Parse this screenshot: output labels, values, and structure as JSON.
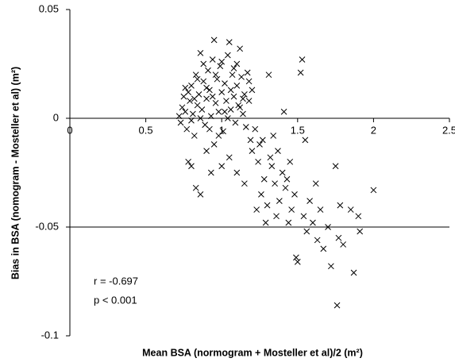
{
  "chart_data": {
    "type": "scatter",
    "xlabel": "Mean BSA (normogram + Mosteller et al)/2 (m²)",
    "ylabel": "Bias in BSA (nomogram - Mosteller et al) (m²)",
    "annotations": [
      "r = -0.697",
      "p < 0.001"
    ],
    "color": "#000000",
    "xlim": [
      0,
      2.5
    ],
    "xticks": [
      0,
      0.5,
      1,
      1.5,
      2,
      2.5
    ],
    "ylim": [
      -0.1,
      0.05
    ],
    "yticks": [
      0.05,
      0,
      -0.05,
      -0.1
    ],
    "grid": true,
    "x": [
      0.72,
      0.73,
      0.74,
      0.75,
      0.76,
      0.77,
      0.78,
      0.79,
      0.8,
      0.81,
      0.82,
      0.83,
      0.84,
      0.85,
      0.86,
      0.87,
      0.88,
      0.89,
      0.9,
      0.91,
      0.92,
      0.93,
      0.94,
      0.95,
      0.96,
      0.97,
      0.98,
      0.99,
      1.0,
      1.01,
      1.02,
      1.03,
      1.04,
      1.05,
      1.06,
      1.07,
      1.08,
      1.09,
      1.1,
      1.11,
      1.12,
      1.13,
      1.14,
      1.15,
      1.16,
      1.17,
      1.18,
      1.19,
      1.2,
      0.76,
      0.8,
      0.84,
      0.88,
      0.92,
      0.96,
      1.0,
      1.04,
      1.08,
      1.12,
      0.82,
      0.86,
      0.9,
      0.94,
      0.98,
      1.02,
      1.06,
      1.1,
      1.14,
      1.18,
      0.78,
      0.8,
      0.83,
      0.86,
      0.9,
      0.95,
      1.0,
      1.05,
      1.1,
      1.15,
      1.2,
      0.93,
      1.22,
      1.24,
      1.25,
      1.26,
      1.28,
      1.3,
      1.32,
      1.33,
      1.35,
      1.36,
      1.38,
      1.4,
      1.41,
      1.42,
      1.44,
      1.45,
      1.46,
      1.48,
      1.49,
      1.5,
      1.52,
      1.53,
      1.54,
      1.55,
      1.56,
      1.58,
      1.6,
      1.62,
      1.63,
      1.65,
      1.67,
      1.7,
      1.72,
      1.75,
      1.76,
      1.77,
      1.78,
      1.8,
      1.85,
      1.87,
      1.9,
      1.91,
      2.0,
      1.34,
      1.31,
      1.29,
      1.37,
      1.43,
      1.23,
      1.27
    ],
    "values": [
      0.001,
      -0.002,
      0.005,
      0.01,
      0.003,
      -0.005,
      0.012,
      0.008,
      0.015,
      0.002,
      -0.008,
      0.02,
      0.006,
      0.011,
      0.03,
      0.004,
      0.017,
      -0.003,
      0.009,
      0.022,
      0.013,
      0.001,
      0.027,
      0.036,
      0.007,
      0.018,
      0.003,
      0.024,
      0.012,
      -0.006,
      0.016,
      0.008,
      0.029,
      0.035,
      0.004,
      0.02,
      0.01,
      -0.002,
      0.015,
      0.006,
      0.032,
      0.019,
      0.002,
      0.011,
      -0.004,
      0.021,
      0.008,
      -0.01,
      0.013,
      0.014,
      -0.001,
      0.018,
      0.025,
      -0.005,
      0.02,
      0.026,
      0.0,
      0.023,
      0.005,
      0.009,
      0.0,
      0.014,
      0.01,
      -0.008,
      0.003,
      0.013,
      0.025,
      0.009,
      0.017,
      -0.02,
      -0.022,
      -0.032,
      -0.035,
      -0.015,
      -0.012,
      -0.022,
      -0.018,
      -0.025,
      -0.03,
      -0.015,
      -0.025,
      -0.005,
      -0.02,
      -0.012,
      -0.035,
      -0.028,
      -0.04,
      -0.018,
      -0.022,
      -0.03,
      -0.045,
      -0.038,
      -0.025,
      0.003,
      -0.032,
      -0.048,
      -0.02,
      -0.042,
      -0.035,
      -0.064,
      -0.066,
      0.021,
      0.027,
      -0.045,
      -0.01,
      -0.052,
      -0.038,
      -0.048,
      -0.03,
      -0.056,
      -0.042,
      -0.06,
      -0.05,
      -0.068,
      -0.022,
      -0.086,
      -0.055,
      -0.04,
      -0.058,
      -0.042,
      -0.071,
      -0.045,
      -0.052,
      -0.033,
      -0.008,
      0.02,
      -0.048,
      -0.015,
      -0.028,
      -0.042,
      -0.01
    ]
  }
}
